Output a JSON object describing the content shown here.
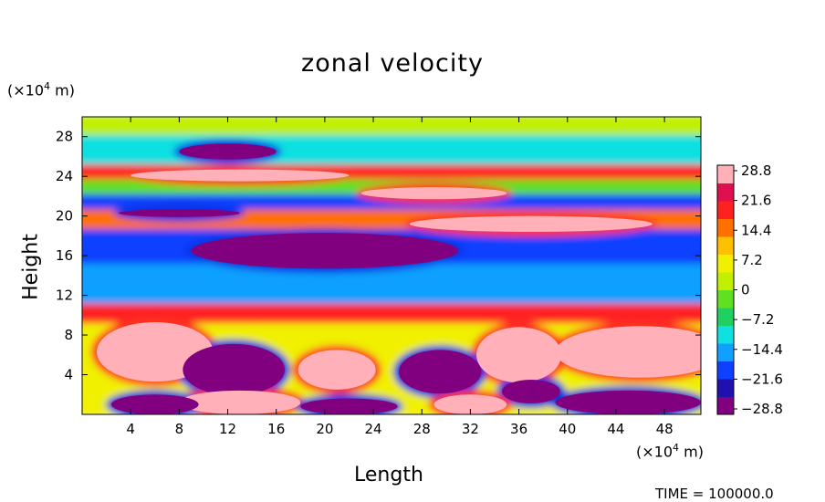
{
  "chart_data": {
    "type": "heatmap",
    "title": "zonal velocity",
    "xlabel": "Length",
    "ylabel": "Height",
    "x_unit": "(×10⁴ m)",
    "y_unit": "(×10⁴ m)",
    "xlim": [
      0,
      51
    ],
    "ylim": [
      0,
      30
    ],
    "x_ticks": [
      "4",
      "8",
      "12",
      "16",
      "20",
      "24",
      "28",
      "32",
      "36",
      "40",
      "44",
      "48"
    ],
    "y_ticks": [
      "4",
      "8",
      "12",
      "16",
      "20",
      "24",
      "28"
    ],
    "colorbar": {
      "min": -28.8,
      "max": 28.8,
      "labels": [
        "28.8",
        "21.6",
        "14.4",
        "7.2",
        "0",
        "−7.2",
        "−14.4",
        "−21.6",
        "−28.8"
      ],
      "colors": [
        "#800080",
        "#2010b0",
        "#1040ff",
        "#10a0ff",
        "#10e0e0",
        "#20d060",
        "#60e020",
        "#c0f000",
        "#f0f000",
        "#ffc000",
        "#ff7000",
        "#ff2020",
        "#e01050",
        "#ffb0b8"
      ]
    },
    "field_bands": [
      {
        "y_from": 28.0,
        "y_to": 30.0,
        "value": 4
      },
      {
        "y_from": 25.0,
        "y_to": 28.0,
        "value": -10
      },
      {
        "y_from": 23.5,
        "y_to": 25.0,
        "value": 18
      },
      {
        "y_from": 22.0,
        "y_to": 23.5,
        "value": -4
      },
      {
        "y_from": 20.5,
        "y_to": 22.0,
        "value": -20
      },
      {
        "y_from": 18.5,
        "y_to": 20.5,
        "value": 15
      },
      {
        "y_from": 15.0,
        "y_to": 18.5,
        "value": -22
      },
      {
        "y_from": 11.0,
        "y_to": 15.0,
        "value": -14
      },
      {
        "y_from": 9.0,
        "y_to": 11.0,
        "value": 20
      },
      {
        "y_from": 0.0,
        "y_to": 9.0,
        "value": 6
      }
    ],
    "field_blobs": [
      {
        "cx": 20,
        "cy": 16.5,
        "rx": 11,
        "ry": 1.8,
        "value": -28.8
      },
      {
        "cx": 8,
        "cy": 20.3,
        "rx": 5,
        "ry": 0.4,
        "value": -28.8
      },
      {
        "cx": 37,
        "cy": 19.2,
        "rx": 10,
        "ry": 0.8,
        "value": 28.8
      },
      {
        "cx": 13,
        "cy": 24.1,
        "rx": 9,
        "ry": 0.6,
        "value": 28.8
      },
      {
        "cx": 29,
        "cy": 22.3,
        "rx": 6,
        "ry": 0.6,
        "value": 28.8
      },
      {
        "cx": 12,
        "cy": 26.5,
        "rx": 4,
        "ry": 0.8,
        "value": -28.8
      },
      {
        "cx": 6,
        "cy": 6.3,
        "rx": 4.8,
        "ry": 3.0,
        "value": 28.8
      },
      {
        "cx": 46,
        "cy": 6.3,
        "rx": 7,
        "ry": 2.6,
        "value": 28.8
      },
      {
        "cx": 36,
        "cy": 6.0,
        "rx": 3.5,
        "ry": 2.8,
        "value": 28.8
      },
      {
        "cx": 21,
        "cy": 4.5,
        "rx": 3.2,
        "ry": 2.0,
        "value": 28.8
      },
      {
        "cx": 12.5,
        "cy": 4.5,
        "rx": 4.2,
        "ry": 2.6,
        "value": -28.8
      },
      {
        "cx": 29.5,
        "cy": 4.3,
        "rx": 3.4,
        "ry": 2.2,
        "value": -28.8
      },
      {
        "cx": 13,
        "cy": 1.2,
        "rx": 5,
        "ry": 1.2,
        "value": 28.8
      },
      {
        "cx": 6,
        "cy": 1.0,
        "rx": 3.6,
        "ry": 1.0,
        "value": -28.8
      },
      {
        "cx": 22,
        "cy": 0.8,
        "rx": 4,
        "ry": 0.8,
        "value": -28.8
      },
      {
        "cx": 45,
        "cy": 1.2,
        "rx": 6,
        "ry": 1.2,
        "value": -28.8
      },
      {
        "cx": 37,
        "cy": 2.3,
        "rx": 2.4,
        "ry": 1.2,
        "value": -28.8
      },
      {
        "cx": 32,
        "cy": 1.0,
        "rx": 3,
        "ry": 1.0,
        "value": 28.8
      }
    ]
  },
  "footer": {
    "time": "TIME = 100000.0"
  }
}
